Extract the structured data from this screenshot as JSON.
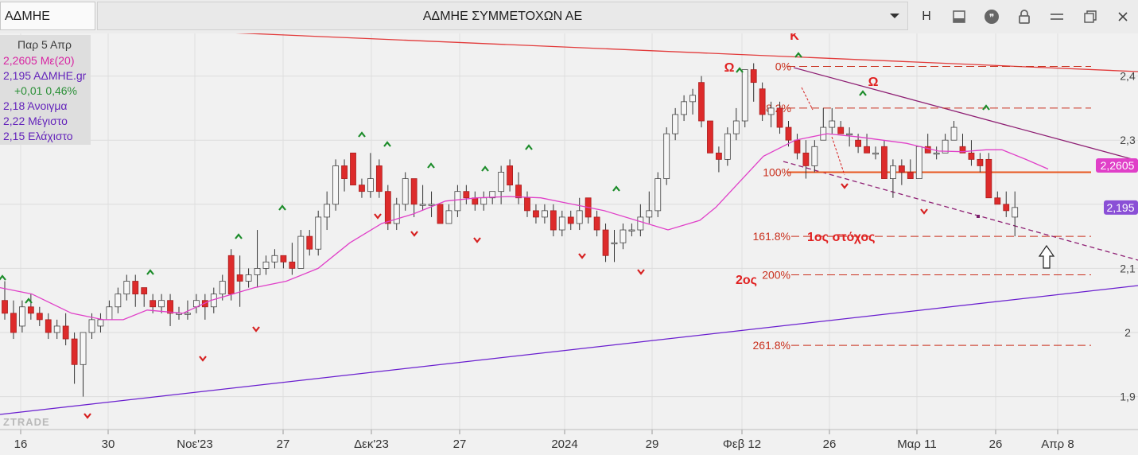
{
  "app": {
    "symbol": "ΑΔΜΗΕ",
    "title": "ΑΔΜΗΕ ΣΥΜΜΕΤΟΧΩΝ ΑΕ",
    "toolbar_icons": [
      "dropdown-icon",
      "h-icon",
      "layout-icon",
      "quote-icon",
      "lock-icon",
      "minimize-icon",
      "restore-icon",
      "close-icon"
    ],
    "h_label": "H"
  },
  "info": {
    "date": "Παρ 5 Απρ",
    "ma_line": "2,2605 Με(20)",
    "price_line": "2,195 ΑΔΜΗΕ.gr",
    "change_line": "+0,01 0,46%",
    "open_line": "2,18 Άνοιγμα",
    "high_line": "2,22 Μέγιστο",
    "low_line": "2,15 Ελάχιστο"
  },
  "colors": {
    "up": "#f7f7f7",
    "down": "#dd2b2b",
    "ma": "#e040c8",
    "resistance": "#e23a3a",
    "support": "#6a1fcf",
    "channel": "#8e1f73",
    "fib": "#c9301d",
    "level_line": "#e8561e",
    "ma_tag": "#e040c8",
    "price_tag": "#8a4fd6"
  },
  "chart_data": {
    "type": "candlestick",
    "y_ticks": [
      "1,9",
      "2",
      "2,1",
      "2,2",
      "2,3",
      "2,4"
    ],
    "x_ticks": [
      "16",
      "30",
      "Νοε'23",
      "27",
      "Δεκ'23",
      "27",
      "2024",
      "29",
      "Φεβ 12",
      "26",
      "Μαρ 11",
      "26",
      "Απρ 8"
    ],
    "ma_tag": "2,2605",
    "price_tag": "2,195",
    "fib_levels": [
      {
        "label": "0%",
        "value": 2.415
      },
      {
        "label": "38.2%",
        "value": 2.35
      },
      {
        "label": "100%",
        "value": 2.25
      },
      {
        "label": "161.8%",
        "value": 2.15
      },
      {
        "label": "200%",
        "value": 2.09
      },
      {
        "label": "261.8%",
        "value": 1.98
      }
    ],
    "annotations": {
      "peak_k": "Κ",
      "omega_left": "Ω",
      "omega_right": "Ω",
      "first_target": "1ος στόχος",
      "second_target": "2ος"
    },
    "watermark": "ZTRADE",
    "candles": [
      [
        2.05,
        2.08,
        2.02,
        2.03
      ],
      [
        2.03,
        2.05,
        1.99,
        2.0
      ],
      [
        2.01,
        2.05,
        2.0,
        2.04
      ],
      [
        2.04,
        2.06,
        2.02,
        2.03
      ],
      [
        2.03,
        2.04,
        2.01,
        2.02
      ],
      [
        2.02,
        2.03,
        1.99,
        2.0
      ],
      [
        2.0,
        2.02,
        1.99,
        2.01
      ],
      [
        2.01,
        2.03,
        1.98,
        1.99
      ],
      [
        1.99,
        2.0,
        1.92,
        1.95
      ],
      [
        1.95,
        2.0,
        1.9,
        2.0
      ],
      [
        2.0,
        2.03,
        1.99,
        2.02
      ],
      [
        2.01,
        2.03,
        2.0,
        2.02
      ],
      [
        2.02,
        2.05,
        2.02,
        2.04
      ],
      [
        2.04,
        2.07,
        2.03,
        2.06
      ],
      [
        2.06,
        2.09,
        2.05,
        2.08
      ],
      [
        2.08,
        2.09,
        2.04,
        2.06
      ],
      [
        2.07,
        2.07,
        2.04,
        2.06
      ],
      [
        2.05,
        2.06,
        2.03,
        2.04
      ],
      [
        2.04,
        2.06,
        2.03,
        2.05
      ],
      [
        2.05,
        2.06,
        2.01,
        2.03
      ],
      [
        2.03,
        2.04,
        2.02,
        2.03
      ],
      [
        2.03,
        2.05,
        2.02,
        2.03
      ],
      [
        2.04,
        2.06,
        2.03,
        2.05
      ],
      [
        2.05,
        2.06,
        2.02,
        2.04
      ],
      [
        2.04,
        2.07,
        2.03,
        2.06
      ],
      [
        2.06,
        2.09,
        2.05,
        2.08
      ],
      [
        2.12,
        2.13,
        2.05,
        2.06
      ],
      [
        2.09,
        2.12,
        2.04,
        2.08
      ],
      [
        2.08,
        2.1,
        2.07,
        2.09
      ],
      [
        2.09,
        2.16,
        2.07,
        2.1
      ],
      [
        2.1,
        2.12,
        2.09,
        2.11
      ],
      [
        2.11,
        2.13,
        2.1,
        2.12
      ],
      [
        2.12,
        2.12,
        2.1,
        2.11
      ],
      [
        2.11,
        2.14,
        2.09,
        2.1
      ],
      [
        2.1,
        2.16,
        2.1,
        2.15
      ],
      [
        2.15,
        2.16,
        2.12,
        2.13
      ],
      [
        2.13,
        2.19,
        2.12,
        2.18
      ],
      [
        2.18,
        2.22,
        2.16,
        2.2
      ],
      [
        2.2,
        2.27,
        2.19,
        2.26
      ],
      [
        2.26,
        2.27,
        2.22,
        2.24
      ],
      [
        2.28,
        2.28,
        2.23,
        2.23
      ],
      [
        2.23,
        2.24,
        2.21,
        2.22
      ],
      [
        2.22,
        2.28,
        2.21,
        2.24
      ],
      [
        2.26,
        2.27,
        2.21,
        2.22
      ],
      [
        2.22,
        2.23,
        2.16,
        2.17
      ],
      [
        2.17,
        2.21,
        2.16,
        2.2
      ],
      [
        2.2,
        2.25,
        2.19,
        2.24
      ],
      [
        2.24,
        2.24,
        2.18,
        2.2
      ],
      [
        2.2,
        2.23,
        2.19,
        2.2
      ],
      [
        2.2,
        2.22,
        2.18,
        2.2
      ],
      [
        2.2,
        2.2,
        2.17,
        2.17
      ],
      [
        2.17,
        2.2,
        2.17,
        2.19
      ],
      [
        2.19,
        2.23,
        2.18,
        2.22
      ],
      [
        2.22,
        2.23,
        2.2,
        2.21
      ],
      [
        2.21,
        2.22,
        2.19,
        2.2
      ],
      [
        2.2,
        2.22,
        2.19,
        2.21
      ],
      [
        2.21,
        2.22,
        2.2,
        2.22
      ],
      [
        2.22,
        2.26,
        2.2,
        2.25
      ],
      [
        2.26,
        2.27,
        2.22,
        2.23
      ],
      [
        2.23,
        2.25,
        2.2,
        2.21
      ],
      [
        2.21,
        2.22,
        2.18,
        2.19
      ],
      [
        2.19,
        2.2,
        2.17,
        2.18
      ],
      [
        2.18,
        2.2,
        2.17,
        2.19
      ],
      [
        2.19,
        2.2,
        2.15,
        2.16
      ],
      [
        2.16,
        2.19,
        2.15,
        2.18
      ],
      [
        2.18,
        2.19,
        2.16,
        2.17
      ],
      [
        2.17,
        2.21,
        2.16,
        2.19
      ],
      [
        2.21,
        2.21,
        2.17,
        2.18
      ],
      [
        2.18,
        2.19,
        2.15,
        2.16
      ],
      [
        2.16,
        2.17,
        2.11,
        2.12
      ],
      [
        2.14,
        2.16,
        2.11,
        2.14
      ],
      [
        2.14,
        2.17,
        2.13,
        2.16
      ],
      [
        2.16,
        2.17,
        2.15,
        2.16
      ],
      [
        2.16,
        2.2,
        2.15,
        2.18
      ],
      [
        2.18,
        2.22,
        2.17,
        2.19
      ],
      [
        2.19,
        2.25,
        2.18,
        2.24
      ],
      [
        2.24,
        2.32,
        2.23,
        2.31
      ],
      [
        2.31,
        2.35,
        2.3,
        2.34
      ],
      [
        2.34,
        2.37,
        2.33,
        2.36
      ],
      [
        2.36,
        2.38,
        2.34,
        2.37
      ],
      [
        2.39,
        2.4,
        2.32,
        2.33
      ],
      [
        2.33,
        2.33,
        2.28,
        2.28
      ],
      [
        2.28,
        2.29,
        2.25,
        2.27
      ],
      [
        2.27,
        2.32,
        2.26,
        2.31
      ],
      [
        2.31,
        2.35,
        2.3,
        2.33
      ],
      [
        2.33,
        2.41,
        2.32,
        2.41
      ],
      [
        2.41,
        2.42,
        2.36,
        2.39
      ],
      [
        2.38,
        2.39,
        2.33,
        2.34
      ],
      [
        2.34,
        2.36,
        2.32,
        2.35
      ],
      [
        2.35,
        2.36,
        2.31,
        2.32
      ],
      [
        2.32,
        2.33,
        2.29,
        2.3
      ],
      [
        2.3,
        2.31,
        2.27,
        2.28
      ],
      [
        2.28,
        2.3,
        2.24,
        2.26
      ],
      [
        2.26,
        2.3,
        2.25,
        2.29
      ],
      [
        2.3,
        2.35,
        2.3,
        2.32
      ],
      [
        2.32,
        2.35,
        2.31,
        2.33
      ],
      [
        2.32,
        2.33,
        2.31,
        2.31
      ],
      [
        2.31,
        2.32,
        2.29,
        2.31
      ],
      [
        2.3,
        2.31,
        2.28,
        2.29
      ],
      [
        2.29,
        2.31,
        2.28,
        2.28
      ],
      [
        2.28,
        2.29,
        2.27,
        2.28
      ],
      [
        2.29,
        2.3,
        2.24,
        2.24
      ],
      [
        2.24,
        2.27,
        2.21,
        2.26
      ],
      [
        2.26,
        2.27,
        2.23,
        2.25
      ],
      [
        2.25,
        2.27,
        2.24,
        2.24
      ],
      [
        2.24,
        2.29,
        2.24,
        2.29
      ],
      [
        2.29,
        2.31,
        2.28,
        2.28
      ],
      [
        2.28,
        2.29,
        2.27,
        2.28
      ],
      [
        2.28,
        2.31,
        2.28,
        2.3
      ],
      [
        2.3,
        2.33,
        2.3,
        2.32
      ],
      [
        2.29,
        2.31,
        2.28,
        2.28
      ],
      [
        2.28,
        2.3,
        2.26,
        2.27
      ],
      [
        2.27,
        2.28,
        2.25,
        2.26
      ],
      [
        2.27,
        2.28,
        2.21,
        2.21
      ],
      [
        2.21,
        2.22,
        2.2,
        2.2
      ],
      [
        2.2,
        2.22,
        2.18,
        2.19
      ],
      [
        2.18,
        2.22,
        2.15,
        2.195
      ]
    ],
    "ma20": [
      [
        0,
        2.07
      ],
      [
        40,
        2.06
      ],
      [
        90,
        2.03
      ],
      [
        130,
        2.02
      ],
      [
        155,
        2.02
      ],
      [
        185,
        2.035
      ],
      [
        230,
        2.03
      ],
      [
        265,
        2.05
      ],
      [
        320,
        2.07
      ],
      [
        360,
        2.08
      ],
      [
        400,
        2.1
      ],
      [
        440,
        2.14
      ],
      [
        480,
        2.17
      ],
      [
        520,
        2.185
      ],
      [
        560,
        2.205
      ],
      [
        600,
        2.21
      ],
      [
        640,
        2.212
      ],
      [
        680,
        2.21
      ],
      [
        720,
        2.2
      ],
      [
        760,
        2.19
      ],
      [
        800,
        2.175
      ],
      [
        840,
        2.16
      ],
      [
        880,
        2.175
      ],
      [
        900,
        2.195
      ],
      [
        930,
        2.235
      ],
      [
        960,
        2.275
      ],
      [
        1000,
        2.3
      ],
      [
        1040,
        2.31
      ],
      [
        1080,
        2.305
      ],
      [
        1110,
        2.3
      ],
      [
        1140,
        2.295
      ],
      [
        1180,
        2.283
      ],
      [
        1210,
        2.282
      ],
      [
        1240,
        2.285
      ],
      [
        1260,
        2.285
      ],
      [
        1290,
        2.27
      ],
      [
        1318,
        2.255
      ]
    ]
  }
}
